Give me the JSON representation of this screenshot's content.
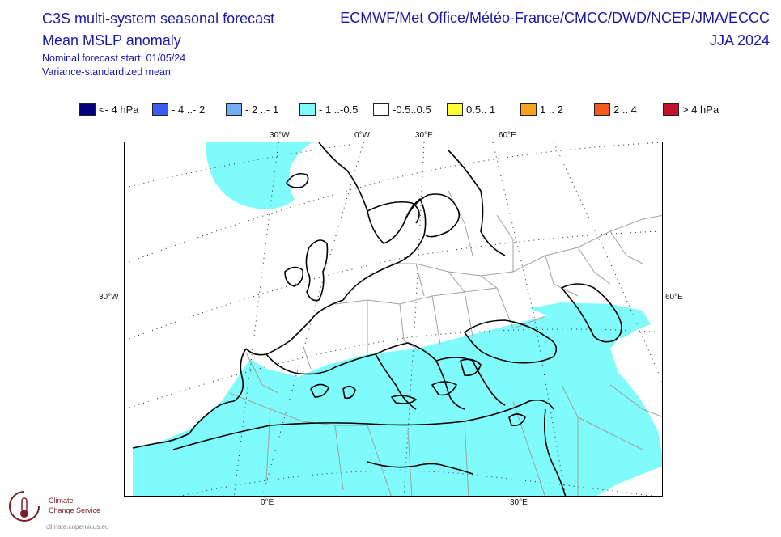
{
  "header": {
    "title_line1": "C3S multi-system seasonal forecast",
    "title_line2": "Mean MSLP anomaly",
    "nominal_start": "Nominal forecast start: 01/05/24",
    "method": "Variance-standardized mean",
    "models": "ECMWF/Met Office/Météo-France/CMCC/DWD/NCEP/JMA/ECCC",
    "season": "JJA 2024"
  },
  "legend": [
    {
      "label": "<- 4 hPa",
      "color": "#00007f"
    },
    {
      "label": "- 4 ..- 2",
      "color": "#3a5cf5"
    },
    {
      "label": "- 2 ..- 1",
      "color": "#74aef2"
    },
    {
      "label": "- 1 ..-0.5",
      "color": "#7ffbfb"
    },
    {
      "label": "-0.5..0.5",
      "color": "#ffffff"
    },
    {
      "label": "0.5.. 1",
      "color": "#ffff33"
    },
    {
      "label": "1 .. 2",
      "color": "#f9a31c"
    },
    {
      "label": "2 .. 4",
      "color": "#f45a1d"
    },
    {
      "label": ">  4 hPa",
      "color": "#c4102b"
    }
  ],
  "map": {
    "anomaly_fill": "#7ffbfb",
    "coast_color": "#000000",
    "border_color": "#a0a0a0",
    "grid_labels": {
      "top": [
        "30°W",
        "0°W",
        "30°E",
        "60°E"
      ],
      "left": "30°W",
      "right": "60°E",
      "bottom": [
        "0°E",
        "30°E"
      ]
    }
  },
  "logo": {
    "line1": "Climate",
    "line2": "Change Service",
    "url": "climate.copernicus.eu",
    "icon": "thermometer-icon"
  }
}
